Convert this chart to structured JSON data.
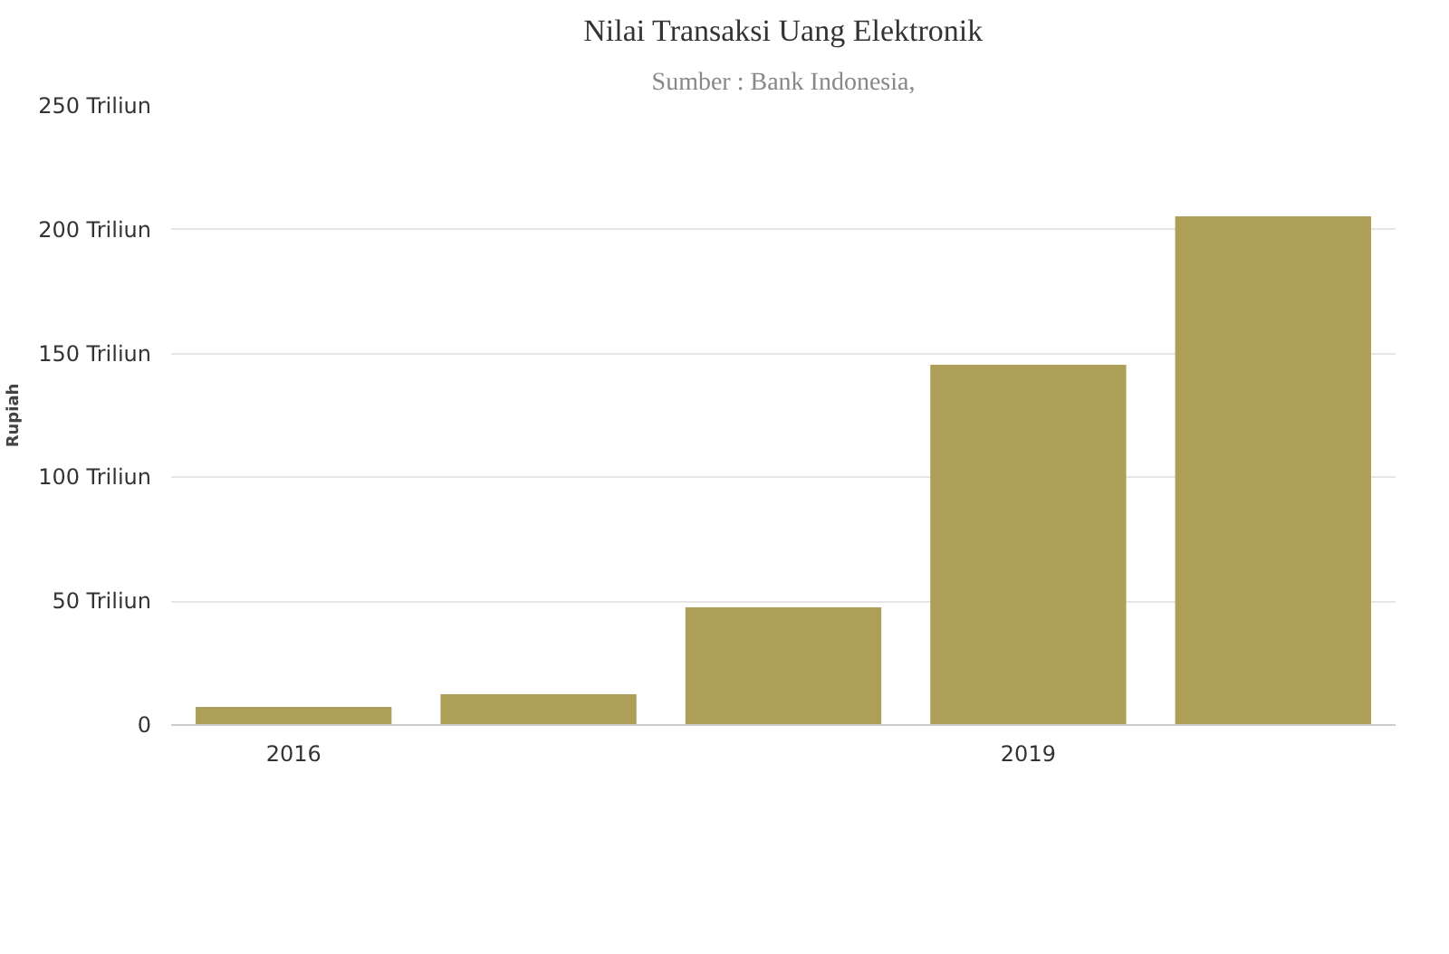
{
  "chart_data": {
    "type": "bar",
    "title": "Nilai Transaksi Uang Elektronik",
    "subtitle": "Sumber : Bank Indonesia,",
    "ylabel": "Rupiah",
    "categories": [
      "2016",
      null,
      null,
      "2019",
      null
    ],
    "values": [
      7.3,
      12.4,
      47.5,
      145.5,
      205.4
    ],
    "color": "#ad9f57",
    "ylim": [
      0,
      250
    ],
    "yticks": [
      {
        "value": 0,
        "label": "0"
      },
      {
        "value": 50,
        "label": "50 Triliun"
      },
      {
        "value": 100,
        "label": "100 Triliun"
      },
      {
        "value": 150,
        "label": "150 Triliun"
      },
      {
        "value": 200,
        "label": "200 Triliun"
      },
      {
        "value": 250,
        "label": "250 Triliun"
      }
    ],
    "grid": "y"
  }
}
